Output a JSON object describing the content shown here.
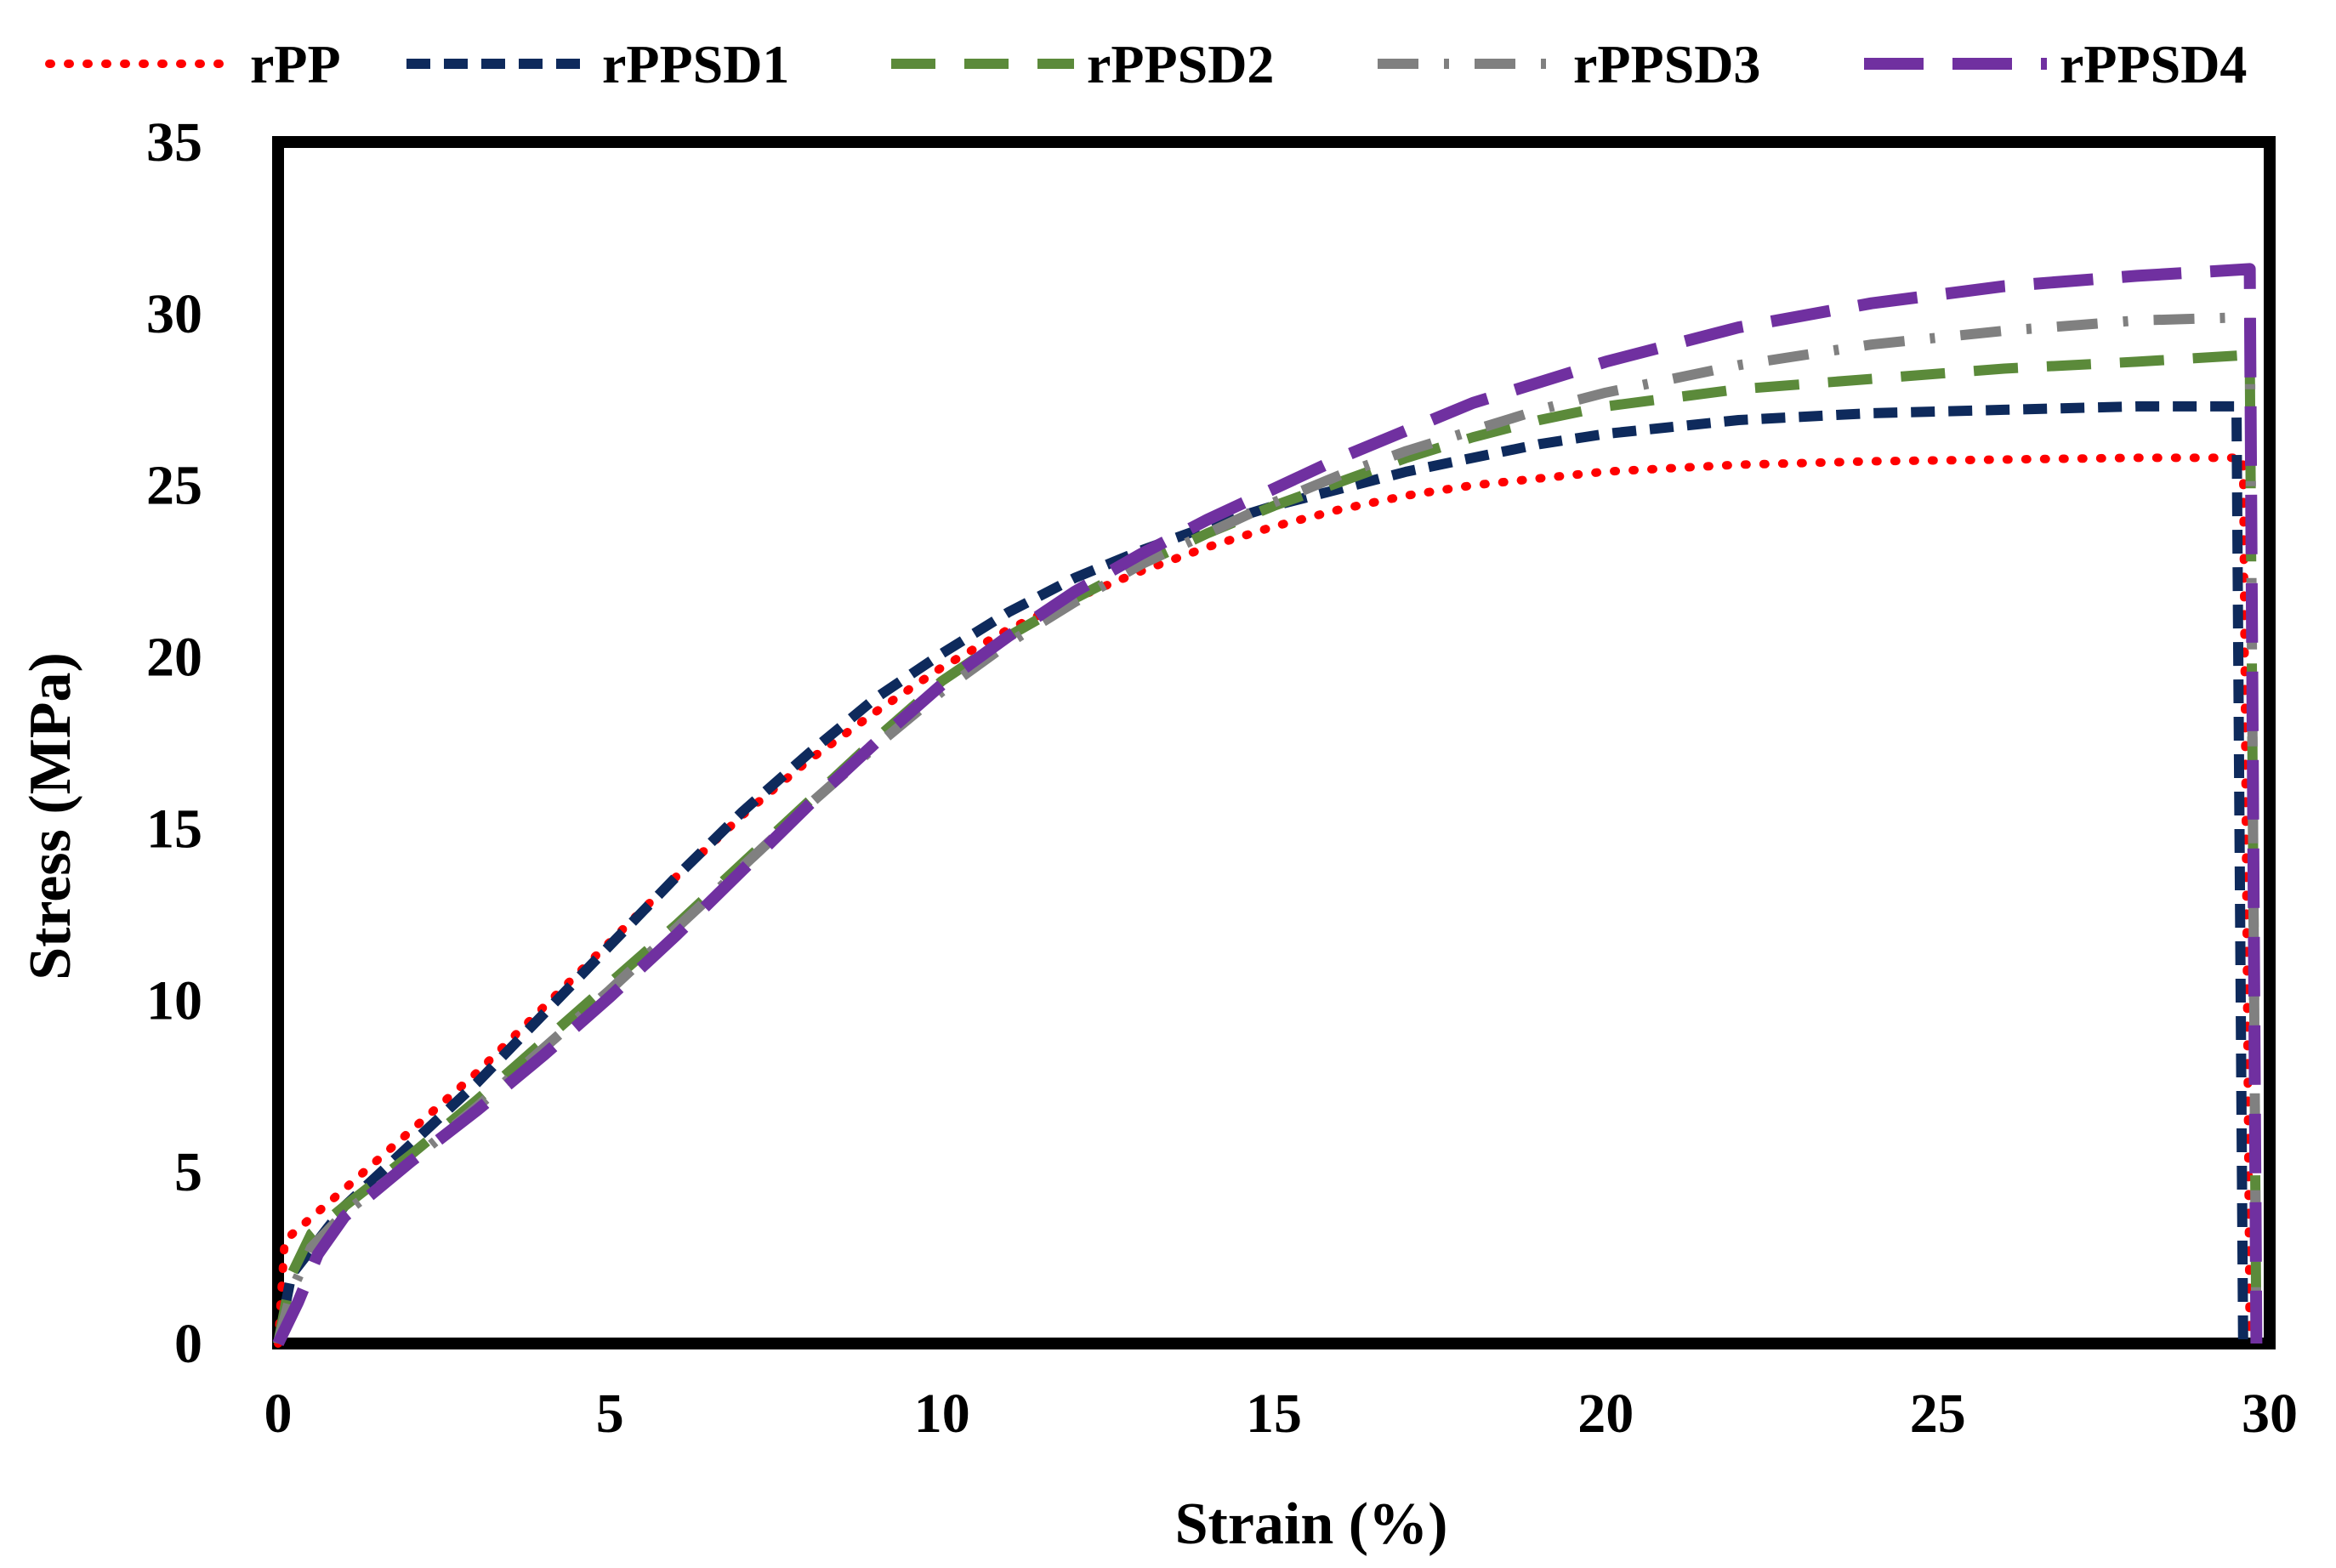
{
  "chart_data": {
    "type": "line",
    "title": "",
    "xlabel": "Strain (%)",
    "ylabel": "Stress (MPa)",
    "xlim": [
      0,
      30
    ],
    "ylim": [
      0,
      35
    ],
    "xticks": [
      "0",
      "5",
      "10",
      "15",
      "20",
      "25",
      "30"
    ],
    "yticks": [
      "0",
      "5",
      "10",
      "15",
      "20",
      "25",
      "30",
      "35"
    ],
    "legend_position": "top",
    "series": [
      {
        "name": "rPP",
        "color": "#ff0000",
        "style": "dotted",
        "points": [
          [
            0,
            0
          ],
          [
            0.1,
            3.0
          ],
          [
            1,
            4.5
          ],
          [
            2,
            6.2
          ],
          [
            3,
            7.9
          ],
          [
            4,
            9.8
          ],
          [
            5,
            11.7
          ],
          [
            6,
            13.6
          ],
          [
            7,
            15.4
          ],
          [
            8,
            17.0
          ],
          [
            9,
            18.4
          ],
          [
            10,
            19.7
          ],
          [
            11,
            20.8
          ],
          [
            12,
            21.7
          ],
          [
            13,
            22.5
          ],
          [
            14,
            23.2
          ],
          [
            15,
            23.8
          ],
          [
            16,
            24.3
          ],
          [
            17,
            24.7
          ],
          [
            18,
            25.0
          ],
          [
            19,
            25.2
          ],
          [
            20,
            25.4
          ],
          [
            22,
            25.6
          ],
          [
            24,
            25.7
          ],
          [
            26,
            25.75
          ],
          [
            28,
            25.8
          ],
          [
            29.6,
            25.8
          ],
          [
            29.7,
            0
          ]
        ]
      },
      {
        "name": "rPPSD1",
        "color": "#0e2a5c",
        "style": "dashed",
        "points": [
          [
            0,
            0
          ],
          [
            0.2,
            2.0
          ],
          [
            1,
            4.0
          ],
          [
            2,
            5.8
          ],
          [
            3,
            7.6
          ],
          [
            4,
            9.6
          ],
          [
            5,
            11.6
          ],
          [
            6,
            13.6
          ],
          [
            7,
            15.5
          ],
          [
            8,
            17.2
          ],
          [
            9,
            18.8
          ],
          [
            10,
            20.1
          ],
          [
            11,
            21.3
          ],
          [
            12,
            22.3
          ],
          [
            13,
            23.1
          ],
          [
            14,
            23.8
          ],
          [
            15,
            24.4
          ],
          [
            16,
            24.9
          ],
          [
            17,
            25.4
          ],
          [
            18,
            25.8
          ],
          [
            19,
            26.2
          ],
          [
            20,
            26.5
          ],
          [
            22,
            26.9
          ],
          [
            24,
            27.1
          ],
          [
            26,
            27.2
          ],
          [
            28,
            27.3
          ],
          [
            29.5,
            27.3
          ],
          [
            29.6,
            0
          ]
        ]
      },
      {
        "name": "rPPSD2",
        "color": "#5b8a3a",
        "style": "long-dashed",
        "points": [
          [
            0,
            0
          ],
          [
            0.2,
            2.0
          ],
          [
            0.5,
            3.2
          ],
          [
            1,
            4.0
          ],
          [
            2,
            5.5
          ],
          [
            3,
            7.1
          ],
          [
            4,
            8.8
          ],
          [
            5,
            10.5
          ],
          [
            6,
            12.2
          ],
          [
            7,
            14.0
          ],
          [
            8,
            15.8
          ],
          [
            9,
            17.6
          ],
          [
            10,
            19.3
          ],
          [
            11,
            20.6
          ],
          [
            12,
            21.7
          ],
          [
            13,
            22.7
          ],
          [
            14,
            23.6
          ],
          [
            15,
            24.4
          ],
          [
            16,
            25.1
          ],
          [
            17,
            25.8
          ],
          [
            18,
            26.4
          ],
          [
            19,
            26.9
          ],
          [
            20,
            27.3
          ],
          [
            22,
            27.8
          ],
          [
            24,
            28.1
          ],
          [
            26,
            28.4
          ],
          [
            28,
            28.6
          ],
          [
            29.7,
            28.8
          ],
          [
            29.8,
            0
          ]
        ]
      },
      {
        "name": "rPPSD3",
        "color": "#808080",
        "style": "dash-dot",
        "points": [
          [
            0,
            0
          ],
          [
            0.2,
            1.5
          ],
          [
            0.5,
            2.8
          ],
          [
            1,
            3.8
          ],
          [
            2,
            5.3
          ],
          [
            3,
            6.9
          ],
          [
            4,
            8.6
          ],
          [
            5,
            10.3
          ],
          [
            6,
            12.1
          ],
          [
            7,
            13.9
          ],
          [
            8,
            15.7
          ],
          [
            9,
            17.4
          ],
          [
            10,
            19.0
          ],
          [
            11,
            20.4
          ],
          [
            12,
            21.6
          ],
          [
            13,
            22.7
          ],
          [
            14,
            23.6
          ],
          [
            15,
            24.5
          ],
          [
            16,
            25.3
          ],
          [
            17,
            26.0
          ],
          [
            18,
            26.6
          ],
          [
            19,
            27.2
          ],
          [
            20,
            27.7
          ],
          [
            22,
            28.5
          ],
          [
            24,
            29.1
          ],
          [
            26,
            29.5
          ],
          [
            28,
            29.8
          ],
          [
            29.7,
            29.9
          ],
          [
            29.8,
            0
          ]
        ]
      },
      {
        "name": "rPPSD4",
        "color": "#7030a0",
        "style": "long-dash",
        "points": [
          [
            0,
            0
          ],
          [
            0.3,
            1.2
          ],
          [
            0.6,
            2.6
          ],
          [
            1,
            3.7
          ],
          [
            2,
            5.3
          ],
          [
            3,
            6.8
          ],
          [
            4,
            8.4
          ],
          [
            5,
            10.1
          ],
          [
            6,
            11.9
          ],
          [
            7,
            13.8
          ],
          [
            8,
            15.7
          ],
          [
            9,
            17.5
          ],
          [
            10,
            19.2
          ],
          [
            11,
            20.6
          ],
          [
            12,
            21.9
          ],
          [
            13,
            23.0
          ],
          [
            14,
            24.0
          ],
          [
            15,
            24.9
          ],
          [
            16,
            25.8
          ],
          [
            17,
            26.6
          ],
          [
            18,
            27.4
          ],
          [
            19,
            28.0
          ],
          [
            20,
            28.6
          ],
          [
            22,
            29.6
          ],
          [
            24,
            30.3
          ],
          [
            26,
            30.8
          ],
          [
            28,
            31.1
          ],
          [
            29.7,
            31.3
          ],
          [
            29.8,
            0
          ]
        ]
      }
    ]
  }
}
